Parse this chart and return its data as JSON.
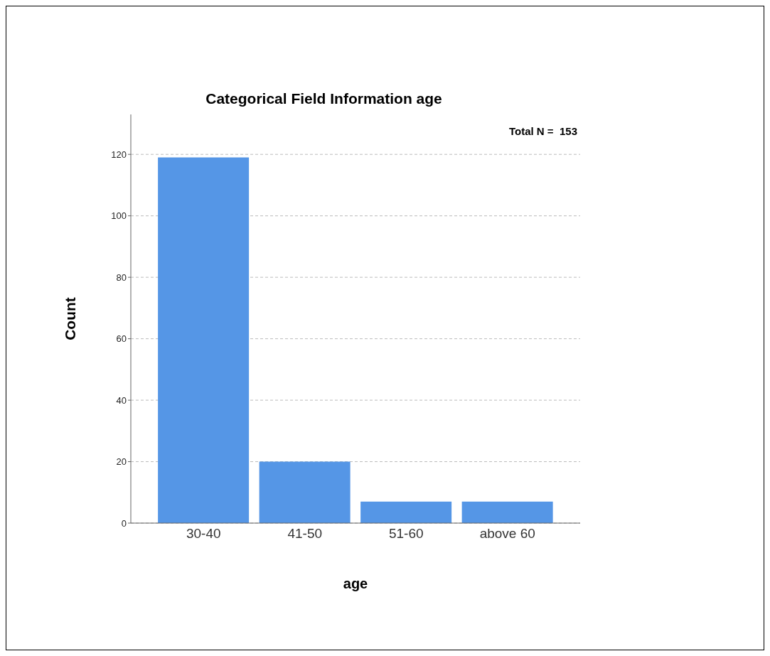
{
  "chart_data": {
    "type": "bar",
    "title": "Categorical Field Information age",
    "xlabel": "age",
    "ylabel": "Count",
    "annotations": [
      "Total N =  153"
    ],
    "categories": [
      "30-40",
      "41-50",
      "51-60",
      "above 60"
    ],
    "values": [
      119,
      20,
      7,
      7
    ],
    "color": "#5596e6",
    "ylim": [
      0,
      133
    ],
    "yticks": [
      0,
      20,
      40,
      60,
      80,
      100,
      120
    ],
    "grid": "y"
  }
}
